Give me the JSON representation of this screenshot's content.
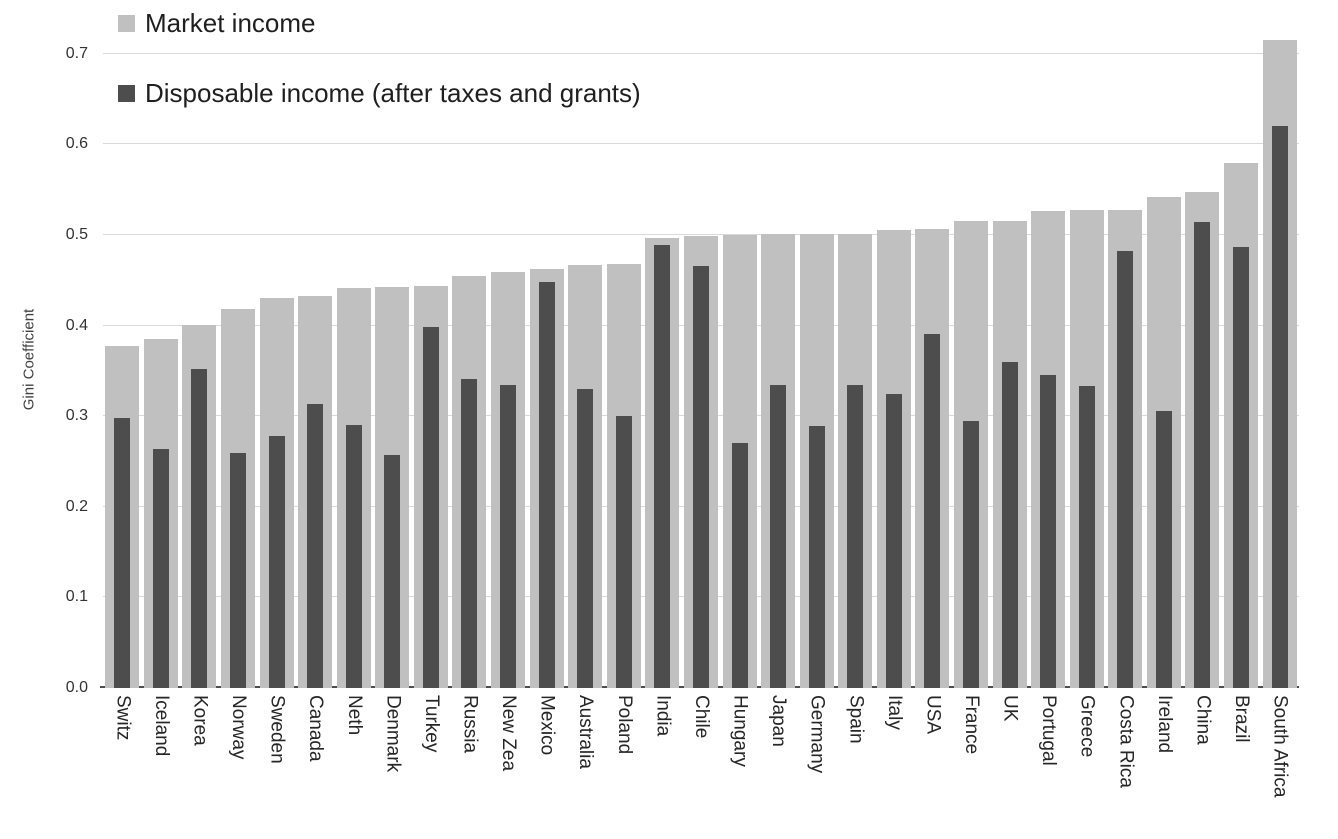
{
  "chart_data": {
    "type": "bar",
    "title": "",
    "xlabel": "",
    "ylabel": "Gini Coefficient",
    "ylim": [
      0.0,
      0.75
    ],
    "yticks": [
      "0.0",
      "0.1",
      "0.2",
      "0.3",
      "0.4",
      "0.5",
      "0.6",
      "0.7"
    ],
    "grid": "horizontal",
    "legend_position": "top-left-inside",
    "categories": [
      "Switz",
      "Iceland",
      "Korea",
      "Norway",
      "Sweden",
      "Canada",
      "Neth",
      "Denmark",
      "Turkey",
      "Russia",
      "New Zea",
      "Mexico",
      "Australia",
      "Poland",
      "India",
      "Chile",
      "Hungary",
      "Japan",
      "Germany",
      "Spain",
      "Italy",
      "USA",
      "France",
      "UK",
      "Portugal",
      "Greece",
      "Costa Rica",
      "Ireland",
      "China",
      "Brazil",
      "South Africa"
    ],
    "series": [
      {
        "name": "Market income",
        "color": "#c0c0c0",
        "values": [
          0.377,
          0.385,
          0.401,
          0.418,
          0.431,
          0.433,
          0.442,
          0.443,
          0.444,
          0.455,
          0.459,
          0.463,
          0.467,
          0.468,
          0.497,
          0.499,
          0.5,
          0.501,
          0.501,
          0.501,
          0.506,
          0.507,
          0.515,
          0.516,
          0.526,
          0.528,
          0.528,
          0.542,
          0.547,
          0.579,
          0.715
        ]
      },
      {
        "name": "Disposable income (after taxes and grants)",
        "color": "#4d4d4d",
        "values": [
          0.298,
          0.264,
          0.352,
          0.259,
          0.278,
          0.313,
          0.29,
          0.257,
          0.399,
          0.341,
          0.335,
          0.448,
          0.33,
          0.3,
          0.489,
          0.466,
          0.27,
          0.334,
          0.289,
          0.335,
          0.325,
          0.391,
          0.295,
          0.36,
          0.345,
          0.333,
          0.482,
          0.306,
          0.514,
          0.487,
          0.62
        ]
      }
    ],
    "colors": {
      "gridline": "#d9d9d9",
      "axis_line": "#4d4d4d",
      "tick_text": "#333333",
      "label_text": "#262626"
    }
  }
}
